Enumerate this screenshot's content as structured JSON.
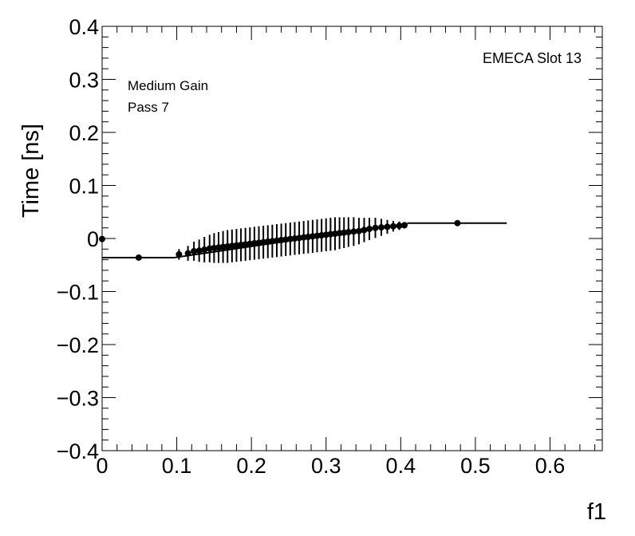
{
  "chart_data": {
    "type": "scatter",
    "title": "",
    "xlabel": "f1",
    "ylabel": "Time [ns]",
    "xlim": [
      0,
      0.67
    ],
    "ylim": [
      -0.4,
      0.4
    ],
    "x_ticks": [
      "0",
      "0.1",
      "0.2",
      "0.3",
      "0.4",
      "0.5",
      "0.6"
    ],
    "y_ticks": [
      "−0.4",
      "−0.3",
      "−0.2",
      "−0.1",
      "0",
      "0.1",
      "0.2",
      "0.3",
      "0.4"
    ],
    "annotations": {
      "slot": "EMECA Slot 13",
      "gain": "Medium Gain",
      "pass": "Pass 7"
    },
    "points": [
      {
        "x": 0.0,
        "y": -0.001,
        "yerr": 0.004,
        "xerr": 0.0
      },
      {
        "x": 0.049,
        "y": -0.036,
        "yerr": 0.005,
        "xerr": 0.0
      },
      {
        "x": 0.103,
        "y": -0.03,
        "yerr": 0.01,
        "xerr": 0.0
      },
      {
        "x": 0.115,
        "y": -0.028,
        "yerr": 0.014,
        "xerr": 0.0
      },
      {
        "x": 0.123,
        "y": -0.024,
        "yerr": 0.018,
        "xerr": 0.0
      },
      {
        "x": 0.13,
        "y": -0.023,
        "yerr": 0.021,
        "xerr": 0.0
      },
      {
        "x": 0.137,
        "y": -0.021,
        "yerr": 0.024,
        "xerr": 0.0
      },
      {
        "x": 0.144,
        "y": -0.019,
        "yerr": 0.026,
        "xerr": 0.0
      },
      {
        "x": 0.15,
        "y": -0.018,
        "yerr": 0.028,
        "xerr": 0.0
      },
      {
        "x": 0.156,
        "y": -0.017,
        "yerr": 0.029,
        "xerr": 0.0
      },
      {
        "x": 0.162,
        "y": -0.016,
        "yerr": 0.03,
        "xerr": 0.0
      },
      {
        "x": 0.168,
        "y": -0.015,
        "yerr": 0.031,
        "xerr": 0.0
      },
      {
        "x": 0.174,
        "y": -0.014,
        "yerr": 0.031,
        "xerr": 0.0
      },
      {
        "x": 0.18,
        "y": -0.013,
        "yerr": 0.031,
        "xerr": 0.0
      },
      {
        "x": 0.186,
        "y": -0.012,
        "yerr": 0.031,
        "xerr": 0.0
      },
      {
        "x": 0.192,
        "y": -0.011,
        "yerr": 0.031,
        "xerr": 0.0
      },
      {
        "x": 0.198,
        "y": -0.01,
        "yerr": 0.031,
        "xerr": 0.0
      },
      {
        "x": 0.204,
        "y": -0.009,
        "yerr": 0.031,
        "xerr": 0.0
      },
      {
        "x": 0.21,
        "y": -0.008,
        "yerr": 0.031,
        "xerr": 0.0
      },
      {
        "x": 0.216,
        "y": -0.007,
        "yerr": 0.031,
        "xerr": 0.0
      },
      {
        "x": 0.222,
        "y": -0.006,
        "yerr": 0.031,
        "xerr": 0.0
      },
      {
        "x": 0.228,
        "y": -0.005,
        "yerr": 0.031,
        "xerr": 0.0
      },
      {
        "x": 0.234,
        "y": -0.004,
        "yerr": 0.031,
        "xerr": 0.0
      },
      {
        "x": 0.24,
        "y": -0.003,
        "yerr": 0.031,
        "xerr": 0.0
      },
      {
        "x": 0.246,
        "y": -0.002,
        "yerr": 0.031,
        "xerr": 0.0
      },
      {
        "x": 0.252,
        "y": -0.001,
        "yerr": 0.031,
        "xerr": 0.0
      },
      {
        "x": 0.258,
        "y": 0.0,
        "yerr": 0.031,
        "xerr": 0.0
      },
      {
        "x": 0.264,
        "y": 0.001,
        "yerr": 0.031,
        "xerr": 0.0
      },
      {
        "x": 0.27,
        "y": 0.002,
        "yerr": 0.031,
        "xerr": 0.0
      },
      {
        "x": 0.276,
        "y": 0.003,
        "yerr": 0.031,
        "xerr": 0.0
      },
      {
        "x": 0.282,
        "y": 0.004,
        "yerr": 0.031,
        "xerr": 0.0
      },
      {
        "x": 0.288,
        "y": 0.005,
        "yerr": 0.031,
        "xerr": 0.0
      },
      {
        "x": 0.294,
        "y": 0.006,
        "yerr": 0.031,
        "xerr": 0.0
      },
      {
        "x": 0.3,
        "y": 0.007,
        "yerr": 0.031,
        "xerr": 0.0
      },
      {
        "x": 0.306,
        "y": 0.008,
        "yerr": 0.031,
        "xerr": 0.0
      },
      {
        "x": 0.312,
        "y": 0.009,
        "yerr": 0.031,
        "xerr": 0.0
      },
      {
        "x": 0.318,
        "y": 0.01,
        "yerr": 0.03,
        "xerr": 0.0
      },
      {
        "x": 0.324,
        "y": 0.011,
        "yerr": 0.029,
        "xerr": 0.0
      },
      {
        "x": 0.33,
        "y": 0.012,
        "yerr": 0.028,
        "xerr": 0.0
      },
      {
        "x": 0.337,
        "y": 0.013,
        "yerr": 0.027,
        "xerr": 0.0
      },
      {
        "x": 0.344,
        "y": 0.014,
        "yerr": 0.025,
        "xerr": 0.0
      },
      {
        "x": 0.351,
        "y": 0.016,
        "yerr": 0.023,
        "xerr": 0.0
      },
      {
        "x": 0.358,
        "y": 0.018,
        "yerr": 0.021,
        "xerr": 0.0
      },
      {
        "x": 0.366,
        "y": 0.02,
        "yerr": 0.019,
        "xerr": 0.0
      },
      {
        "x": 0.374,
        "y": 0.021,
        "yerr": 0.016,
        "xerr": 0.0
      },
      {
        "x": 0.382,
        "y": 0.022,
        "yerr": 0.013,
        "xerr": 0.0
      },
      {
        "x": 0.39,
        "y": 0.023,
        "yerr": 0.01,
        "xerr": 0.0
      },
      {
        "x": 0.398,
        "y": 0.024,
        "yerr": 0.008,
        "xerr": 0.0
      },
      {
        "x": 0.405,
        "y": 0.025,
        "yerr": 0.006,
        "xerr": 0.0
      },
      {
        "x": 0.476,
        "y": 0.029,
        "yerr": 0.005,
        "xerr": 0.0
      }
    ],
    "fit_segments": [
      {
        "x1": 0.0,
        "x2": 0.097,
        "y": -0.036
      },
      {
        "x1": 0.097,
        "x2": 0.409,
        "y": -0.036,
        "y_end": 0.028
      },
      {
        "x1": 0.409,
        "x2": 0.542,
        "y": 0.029
      }
    ],
    "grid": false,
    "marker_color": "#000000"
  }
}
